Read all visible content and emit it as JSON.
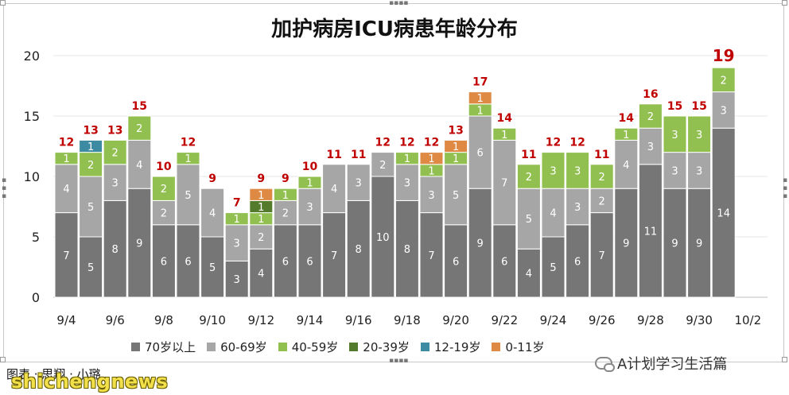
{
  "chart_data": {
    "type": "bar",
    "stacked": true,
    "title": "加护病房ICU病患年龄分布",
    "ylim": [
      0,
      20
    ],
    "yticks": [
      0,
      5,
      10,
      15,
      20
    ],
    "xtick_labels": [
      "9/4",
      "9/6",
      "9/8",
      "9/10",
      "9/12",
      "9/14",
      "9/16",
      "9/18",
      "9/20",
      "9/22",
      "9/24",
      "9/26",
      "9/28",
      "9/30",
      "10/2"
    ],
    "legend_position": "bottom",
    "categories": [
      "9/4",
      "9/5",
      "9/6",
      "9/7",
      "9/8",
      "9/9",
      "9/10",
      "9/11",
      "9/12",
      "9/13",
      "9/14",
      "9/15",
      "9/16",
      "9/17",
      "9/18",
      "9/19",
      "9/20",
      "9/21",
      "9/22",
      "9/23",
      "9/24",
      "9/25",
      "9/26",
      "9/27",
      "9/28",
      "9/29",
      "9/30",
      "10/1"
    ],
    "series": [
      {
        "name": "70岁以上",
        "color": "#767676",
        "values": [
          7,
          5,
          8,
          9,
          6,
          6,
          5,
          3,
          4,
          6,
          6,
          7,
          8,
          10,
          8,
          7,
          6,
          9,
          6,
          4,
          5,
          6,
          7,
          9,
          11,
          9,
          9,
          14
        ]
      },
      {
        "name": "60-69岁",
        "color": "#a6a6a6",
        "values": [
          4,
          5,
          3,
          4,
          2,
          5,
          4,
          3,
          2,
          2,
          3,
          4,
          3,
          2,
          3,
          3,
          5,
          6,
          7,
          5,
          4,
          3,
          2,
          4,
          3,
          3,
          3,
          3
        ]
      },
      {
        "name": "40-59岁",
        "color": "#92c050",
        "values": [
          1,
          2,
          2,
          2,
          2,
          1,
          0,
          1,
          1,
          1,
          1,
          0,
          0,
          0,
          1,
          1,
          1,
          1,
          1,
          2,
          3,
          3,
          2,
          1,
          2,
          3,
          3,
          2
        ]
      },
      {
        "name": "20-39岁",
        "color": "#547a2c",
        "values": [
          0,
          0,
          0,
          0,
          0,
          0,
          0,
          0,
          1,
          0,
          0,
          0,
          0,
          0,
          0,
          0,
          0,
          0,
          0,
          0,
          0,
          0,
          0,
          0,
          0,
          0,
          0,
          0
        ]
      },
      {
        "name": "12-19岁",
        "color": "#3d8aa3",
        "values": [
          0,
          1,
          0,
          0,
          0,
          0,
          0,
          0,
          0,
          0,
          0,
          0,
          0,
          0,
          0,
          0,
          0,
          0,
          0,
          0,
          0,
          0,
          0,
          0,
          0,
          0,
          0,
          0
        ]
      },
      {
        "name": "0-11岁",
        "color": "#de8a45",
        "values": [
          0,
          0,
          0,
          0,
          0,
          0,
          0,
          0,
          1,
          0,
          0,
          0,
          0,
          0,
          0,
          1,
          1,
          1,
          0,
          0,
          0,
          0,
          0,
          0,
          0,
          0,
          0,
          0
        ]
      }
    ],
    "totals": [
      12,
      13,
      13,
      15,
      10,
      12,
      9,
      7,
      9,
      9,
      10,
      11,
      11,
      12,
      12,
      12,
      13,
      17,
      14,
      11,
      12,
      12,
      11,
      14,
      16,
      15,
      15,
      19
    ],
    "total_label_color": "#c00000",
    "bar_colors": [
      "#767676",
      "#a6a6a6",
      "#92c050",
      "#547a2c",
      "#3d8aa3",
      "#de8a45"
    ]
  },
  "footer": {
    "credit": "图表 · 思翔 · 小璐",
    "source": "A计划学习生活篇",
    "watermark": "shichengnews"
  }
}
